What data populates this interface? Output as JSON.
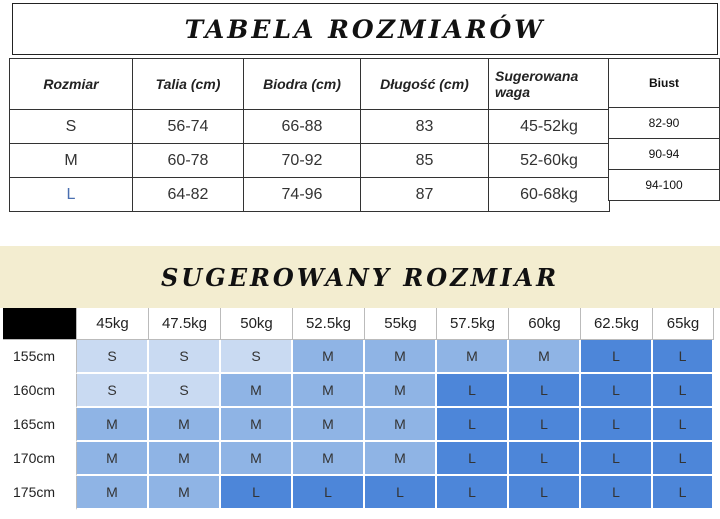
{
  "top_title": "TABELA ROZMIARÓW",
  "size_table": {
    "headers": [
      "Rozmiar",
      "Talia (cm)",
      "Biodra (cm)",
      "Długość (cm)",
      "Sugerowana waga"
    ],
    "rows": [
      [
        "S",
        "56-74",
        "66-88",
        "83",
        "45-52kg"
      ],
      [
        "M",
        "60-78",
        "70-92",
        "85",
        "52-60kg"
      ],
      [
        "L",
        "64-82",
        "74-96",
        "87",
        "60-68kg"
      ]
    ]
  },
  "bust_table": {
    "header": "Biust",
    "rows": [
      "82-90",
      "90-94",
      "94-100"
    ]
  },
  "bottom_title": "SUGEROWANY ROZMIAR",
  "recommend_table": {
    "weights": [
      "45kg",
      "47.5kg",
      "50kg",
      "52.5kg",
      "55kg",
      "57.5kg",
      "60kg",
      "62.5kg",
      "65kg"
    ],
    "rows": [
      {
        "height": "155cm",
        "sizes": [
          "S",
          "S",
          "S",
          "M",
          "M",
          "M",
          "M",
          "L",
          "L"
        ]
      },
      {
        "height": "160cm",
        "sizes": [
          "S",
          "S",
          "M",
          "M",
          "M",
          "L",
          "L",
          "L",
          "L"
        ]
      },
      {
        "height": "165cm",
        "sizes": [
          "M",
          "M",
          "M",
          "M",
          "M",
          "L",
          "L",
          "L",
          "L"
        ]
      },
      {
        "height": "170cm",
        "sizes": [
          "M",
          "M",
          "M",
          "M",
          "M",
          "L",
          "L",
          "L",
          "L"
        ]
      },
      {
        "height": "175cm",
        "sizes": [
          "M",
          "M",
          "L",
          "L",
          "L",
          "L",
          "L",
          "L",
          "L"
        ]
      }
    ]
  },
  "colors": {
    "S": "#c9daf2",
    "M": "#8fb4e5",
    "L": "#4d86d9",
    "band": "#f3edd0"
  }
}
